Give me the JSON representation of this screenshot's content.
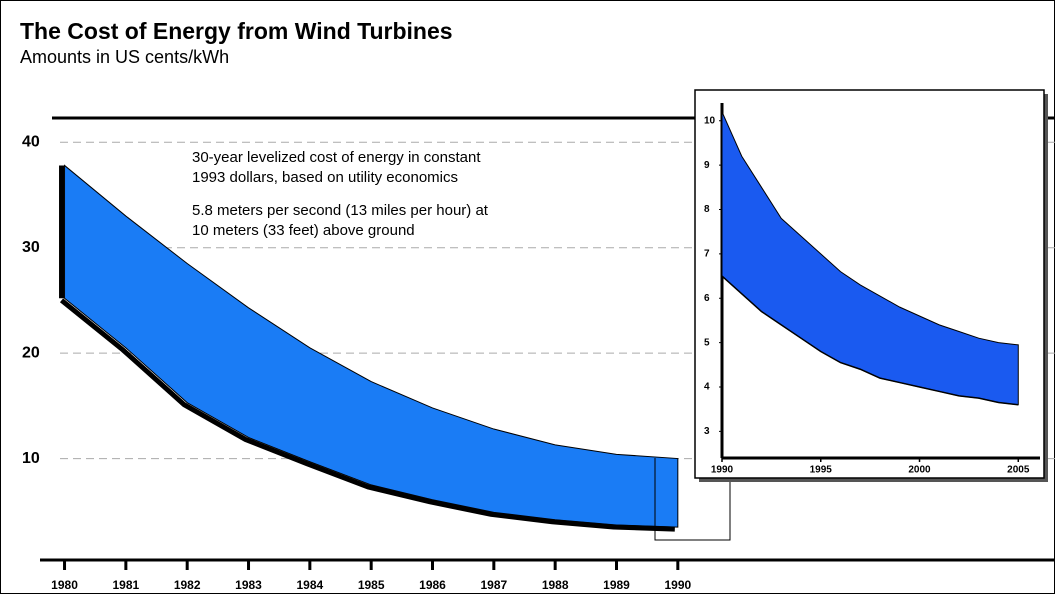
{
  "chart_data": [
    {
      "type": "area_range",
      "title": "The Cost of Energy from Wind Turbines",
      "subtitle": "Amounts in US cents/kWh",
      "annotations": [
        [
          "30-year levelized cost of energy in constant",
          "1993 dollars, based on utility economics"
        ],
        [
          "5.8 meters per second (13 miles per hour) at",
          "10 meters (33 feet) above ground"
        ]
      ],
      "x": [
        1980,
        1981,
        1982,
        1983,
        1984,
        1985,
        1986,
        1987,
        1988,
        1989,
        1990
      ],
      "high": [
        37.8,
        33,
        28.5,
        24.3,
        20.5,
        17.3,
        14.8,
        12.8,
        11.3,
        10.4,
        10
      ],
      "low": [
        25.2,
        20.5,
        15.3,
        12,
        9.7,
        7.5,
        6.1,
        4.9,
        4.2,
        3.7,
        3.5
      ],
      "color": "#1a7cf5",
      "xlim": [
        1979.6,
        1996.15
      ],
      "xticks": [
        1980,
        1981,
        1982,
        1983,
        1984,
        1985,
        1986,
        1987,
        1988,
        1989,
        1990
      ],
      "ylim": [
        0,
        42.3
      ],
      "yticks": [
        10,
        20,
        30,
        40
      ],
      "grid": true
    },
    {
      "type": "area_range",
      "x": [
        1990,
        1991,
        1992,
        1993,
        1994,
        1995,
        1996,
        1997,
        1998,
        1999,
        2000,
        2001,
        2002,
        2003,
        2004,
        2005
      ],
      "high": [
        10.2,
        9.2,
        8.5,
        7.8,
        7.4,
        7,
        6.6,
        6.3,
        6.05,
        5.8,
        5.6,
        5.4,
        5.25,
        5.1,
        5,
        4.95
      ],
      "low": [
        6.5,
        6.1,
        5.7,
        5.4,
        5.1,
        4.8,
        4.55,
        4.4,
        4.2,
        4.1,
        4,
        3.9,
        3.8,
        3.75,
        3.65,
        3.6
      ],
      "color": "#1a5af0",
      "xlim": [
        1990,
        2006.1
      ],
      "xticks": [
        1990,
        1995,
        2000,
        2005
      ],
      "ylim": [
        2.4,
        10.4
      ],
      "yticks": [
        3,
        4,
        5,
        6,
        7,
        8,
        9,
        10
      ],
      "grid": false
    }
  ]
}
